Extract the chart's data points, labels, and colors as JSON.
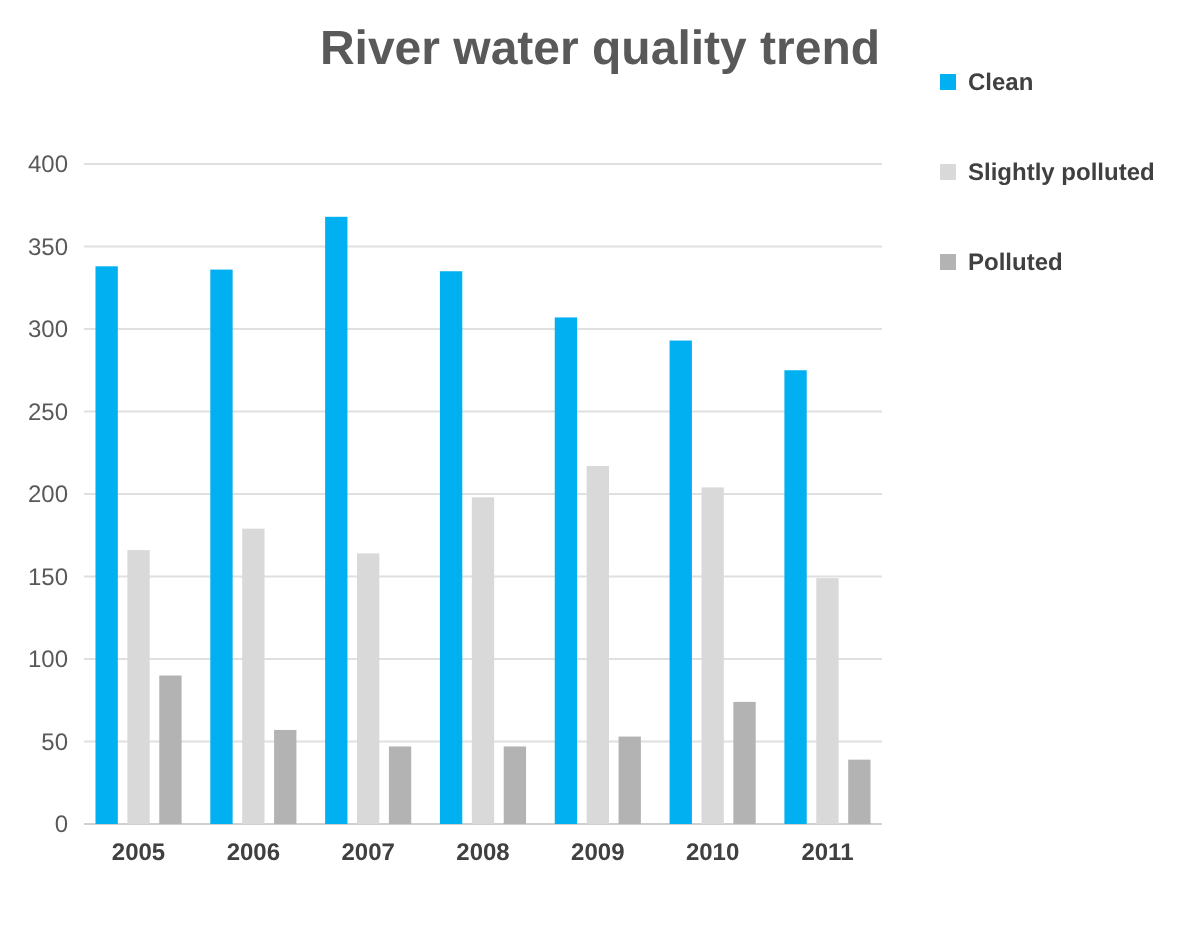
{
  "chart_data": {
    "type": "bar",
    "title": "River water quality trend",
    "categories": [
      "2005",
      "2006",
      "2007",
      "2008",
      "2009",
      "2010",
      "2011"
    ],
    "series": [
      {
        "name": "Clean",
        "color": "#00b0f0",
        "values": [
          338,
          336,
          368,
          335,
          307,
          293,
          275
        ]
      },
      {
        "name": "Slightly polluted",
        "color": "#d9d9d9",
        "values": [
          166,
          179,
          164,
          198,
          217,
          204,
          149
        ]
      },
      {
        "name": "Polluted",
        "color": "#b3b3b3",
        "values": [
          90,
          57,
          47,
          47,
          53,
          74,
          39
        ]
      }
    ],
    "ylim": [
      0,
      400
    ],
    "yticks": [
      0,
      50,
      100,
      150,
      200,
      250,
      300,
      350,
      400
    ],
    "grid": "y",
    "legend": "right"
  }
}
